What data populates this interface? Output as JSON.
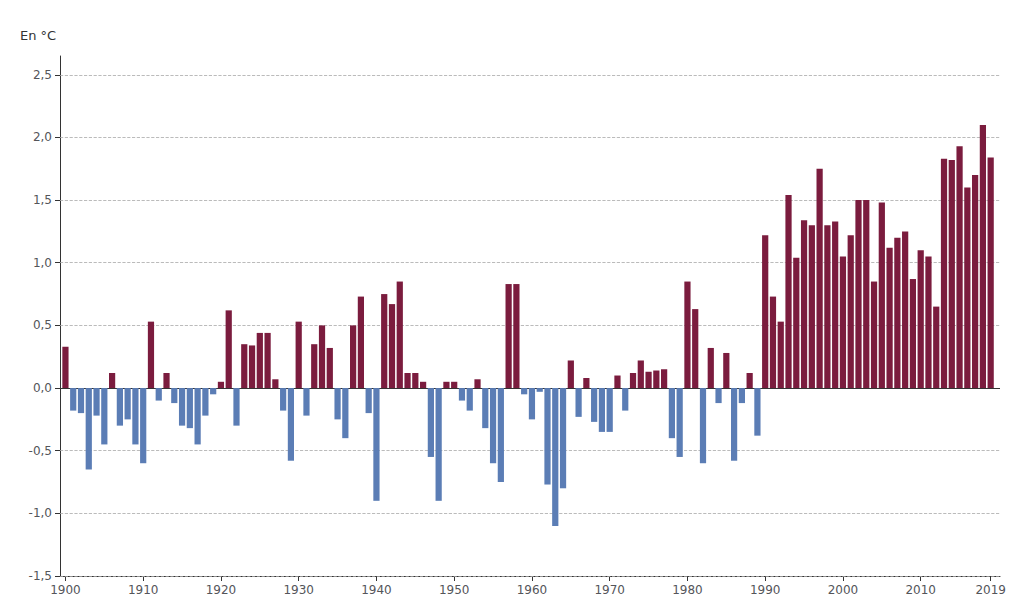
{
  "chart_data": {
    "type": "bar",
    "ylabel": "En °C",
    "x": [
      1900,
      1901,
      1902,
      1903,
      1904,
      1905,
      1906,
      1907,
      1908,
      1909,
      1910,
      1911,
      1912,
      1913,
      1914,
      1915,
      1916,
      1917,
      1918,
      1919,
      1920,
      1921,
      1922,
      1923,
      1924,
      1925,
      1926,
      1927,
      1928,
      1929,
      1930,
      1931,
      1932,
      1933,
      1934,
      1935,
      1936,
      1937,
      1938,
      1939,
      1940,
      1941,
      1942,
      1943,
      1944,
      1945,
      1946,
      1947,
      1948,
      1949,
      1950,
      1951,
      1952,
      1953,
      1954,
      1955,
      1956,
      1957,
      1958,
      1959,
      1960,
      1961,
      1962,
      1963,
      1964,
      1965,
      1966,
      1967,
      1968,
      1969,
      1970,
      1971,
      1972,
      1973,
      1974,
      1975,
      1976,
      1977,
      1978,
      1979,
      1980,
      1981,
      1982,
      1983,
      1984,
      1985,
      1986,
      1987,
      1988,
      1989,
      1990,
      1991,
      1992,
      1993,
      1994,
      1995,
      1996,
      1997,
      1998,
      1999,
      2000,
      2001,
      2002,
      2003,
      2004,
      2005,
      2006,
      2007,
      2008,
      2009,
      2010,
      2011,
      2012,
      2013,
      2014,
      2015,
      2016,
      2017,
      2018,
      2019
    ],
    "values": [
      0.33,
      -0.18,
      -0.2,
      -0.65,
      -0.22,
      -0.45,
      0.12,
      -0.3,
      -0.25,
      -0.45,
      -0.6,
      0.53,
      -0.1,
      0.12,
      -0.12,
      -0.3,
      -0.32,
      -0.45,
      -0.22,
      -0.05,
      0.05,
      0.62,
      -0.3,
      0.35,
      0.34,
      0.44,
      0.44,
      0.07,
      -0.18,
      -0.58,
      0.53,
      -0.22,
      0.35,
      0.5,
      0.32,
      -0.25,
      -0.4,
      0.5,
      0.73,
      -0.2,
      -0.9,
      0.75,
      0.67,
      0.85,
      0.12,
      0.12,
      0.05,
      -0.55,
      -0.9,
      0.05,
      0.05,
      -0.1,
      -0.18,
      0.07,
      -0.32,
      -0.6,
      -0.75,
      0.83,
      0.83,
      -0.05,
      -0.25,
      -0.03,
      -0.77,
      -1.1,
      -0.8,
      0.22,
      -0.23,
      0.08,
      -0.27,
      -0.35,
      -0.35,
      0.1,
      -0.18,
      0.12,
      0.22,
      0.13,
      0.14,
      0.15,
      -0.4,
      -0.55,
      0.85,
      0.63,
      -0.6,
      0.32,
      -0.12,
      0.28,
      -0.58,
      -0.12,
      0.12,
      -0.38,
      1.22,
      0.73,
      0.53,
      1.54,
      1.04,
      1.34,
      1.3,
      1.75,
      1.3,
      1.33,
      1.05,
      1.22,
      1.5,
      1.5,
      0.85,
      1.48,
      1.12,
      1.2,
      1.25,
      0.87,
      1.1,
      1.05,
      0.65,
      1.83,
      1.82,
      1.93,
      1.6,
      1.7,
      2.1,
      1.84
    ],
    "colors": [
      "#7B1C3E",
      "#5B7DB5",
      "#5B7DB5",
      "#5B7DB5",
      "#5B7DB5",
      "#5B7DB5",
      "#7B1C3E",
      "#5B7DB5",
      "#5B7DB5",
      "#5B7DB5",
      "#5B7DB5",
      "#7B1C3E",
      "#5B7DB5",
      "#7B1C3E",
      "#5B7DB5",
      "#5B7DB5",
      "#5B7DB5",
      "#5B7DB5",
      "#5B7DB5",
      "#5B7DB5",
      "#7B1C3E",
      "#7B1C3E",
      "#5B7DB5",
      "#7B1C3E",
      "#7B1C3E",
      "#7B1C3E",
      "#7B1C3E",
      "#7B1C3E",
      "#5B7DB5",
      "#5B7DB5",
      "#7B1C3E",
      "#5B7DB5",
      "#7B1C3E",
      "#7B1C3E",
      "#7B1C3E",
      "#5B7DB5",
      "#5B7DB5",
      "#7B1C3E",
      "#7B1C3E",
      "#5B7DB5",
      "#5B7DB5",
      "#7B1C3E",
      "#7B1C3E",
      "#7B1C3E",
      "#7B1C3E",
      "#7B1C3E",
      "#7B1C3E",
      "#5B7DB5",
      "#5B7DB5",
      "#7B1C3E",
      "#7B1C3E",
      "#5B7DB5",
      "#5B7DB5",
      "#7B1C3E",
      "#5B7DB5",
      "#5B7DB5",
      "#5B7DB5",
      "#7B1C3E",
      "#7B1C3E",
      "#5B7DB5",
      "#5B7DB5",
      "#5B7DB5",
      "#5B7DB5",
      "#5B7DB5",
      "#5B7DB5",
      "#7B1C3E",
      "#5B7DB5",
      "#7B1C3E",
      "#5B7DB5",
      "#5B7DB5",
      "#5B7DB5",
      "#7B1C3E",
      "#5B7DB5",
      "#7B1C3E",
      "#7B1C3E",
      "#7B1C3E",
      "#7B1C3E",
      "#7B1C3E",
      "#5B7DB5",
      "#5B7DB5",
      "#7B1C3E",
      "#7B1C3E",
      "#5B7DB5",
      "#7B1C3E",
      "#5B7DB5",
      "#7B1C3E",
      "#5B7DB5",
      "#5B7DB5",
      "#7B1C3E",
      "#5B7DB5",
      "#7B1C3E",
      "#7B1C3E",
      "#7B1C3E",
      "#7B1C3E",
      "#7B1C3E",
      "#7B1C3E",
      "#7B1C3E",
      "#7B1C3E",
      "#7B1C3E",
      "#7B1C3E",
      "#7B1C3E",
      "#7B1C3E",
      "#7B1C3E",
      "#7B1C3E",
      "#7B1C3E",
      "#7B1C3E",
      "#7B1C3E",
      "#7B1C3E",
      "#7B1C3E",
      "#7B1C3E",
      "#7B1C3E",
      "#7B1C3E",
      "#7B1C3E",
      "#7B1C3E",
      "#7B1C3E",
      "#7B1C3E",
      "#7B1C3E",
      "#7B1C3E",
      "#7B1C3E",
      "#7B1C3E"
    ],
    "xlim": [
      1899.3,
      2020.2
    ],
    "xticks": [
      1900,
      1910,
      1920,
      1930,
      1940,
      1950,
      1960,
      1970,
      1980,
      1990,
      2000,
      2010,
      2019
    ],
    "ylim": [
      -1.5,
      2.65
    ],
    "yticks": [
      {
        "value": -1.5,
        "label": "-1,5"
      },
      {
        "value": -1.0,
        "label": "-1,0"
      },
      {
        "value": -0.5,
        "label": "-0,5"
      },
      {
        "value": 0.0,
        "label": "0,0"
      },
      {
        "value": 0.5,
        "label": "0,5"
      },
      {
        "value": 1.0,
        "label": "1,0"
      },
      {
        "value": 1.5,
        "label": "1,5"
      },
      {
        "value": 2.0,
        "label": "2,0"
      },
      {
        "value": 2.5,
        "label": "2,5"
      }
    ],
    "grid": true
  }
}
